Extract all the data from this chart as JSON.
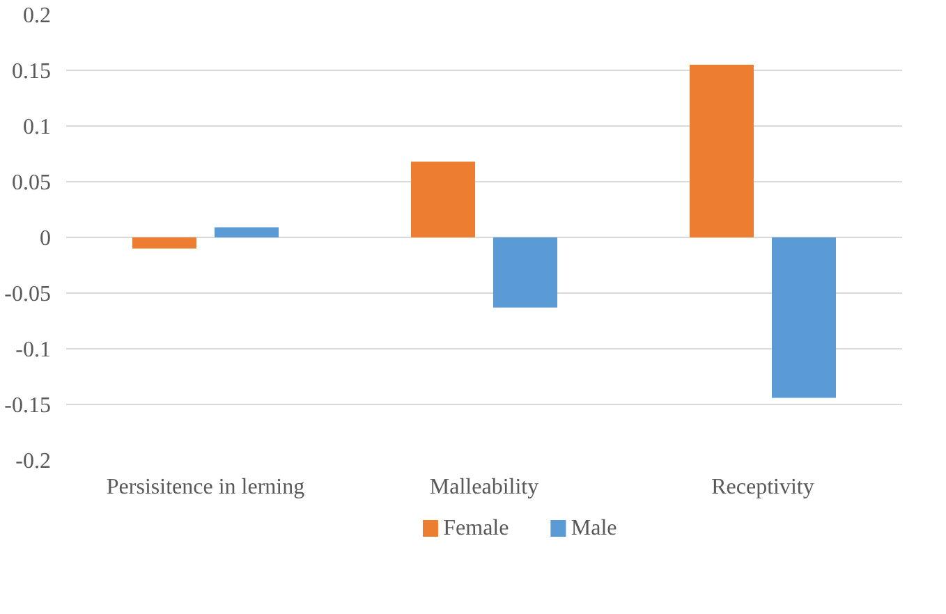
{
  "chart_data": {
    "type": "bar",
    "categories": [
      "Persisitence in lerning",
      "Malleability",
      "Receptivity"
    ],
    "series": [
      {
        "name": "Female",
        "color": "#ed7d31",
        "values": [
          -0.01,
          0.068,
          0.155
        ]
      },
      {
        "name": "Male",
        "color": "#5b9bd5",
        "values": [
          0.009,
          -0.063,
          -0.144
        ]
      }
    ],
    "ylim": [
      -0.2,
      0.2
    ],
    "yticks": [
      -0.2,
      -0.15,
      -0.1,
      -0.05,
      0,
      0.05,
      0.1,
      0.15,
      0.2
    ],
    "grid": "y",
    "legend": "bottom"
  }
}
